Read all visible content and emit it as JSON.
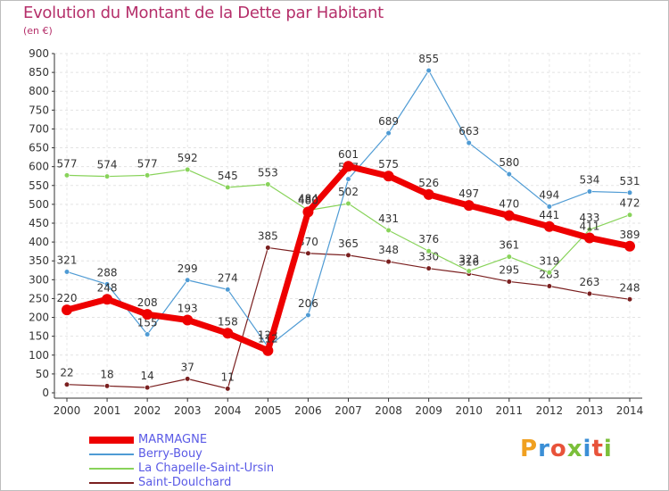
{
  "header": {
    "title": "Evolution du Montant de la Dette par Habitant",
    "subtitle": "(en €)"
  },
  "logo": {
    "text": "Proxiti",
    "letters": [
      {
        "ch": "P",
        "color": "#f0a020"
      },
      {
        "ch": "r",
        "color": "#3b8fd6"
      },
      {
        "ch": "o",
        "color": "#e8533a"
      },
      {
        "ch": "x",
        "color": "#7bbf3a"
      },
      {
        "ch": "i",
        "color": "#3b8fd6"
      },
      {
        "ch": "t",
        "color": "#e8533a"
      },
      {
        "ch": "i",
        "color": "#7bbf3a"
      }
    ]
  },
  "chart_data": {
    "type": "line",
    "x": [
      "2000",
      "2001",
      "2002",
      "2003",
      "2004",
      "2005",
      "2006",
      "2007",
      "2008",
      "2009",
      "2010",
      "2011",
      "2012",
      "2013",
      "2014"
    ],
    "ylim": [
      0,
      900
    ],
    "yticks": [
      0,
      50,
      100,
      150,
      200,
      250,
      300,
      350,
      400,
      450,
      500,
      550,
      600,
      650,
      700,
      750,
      800,
      850,
      900
    ],
    "grid": true,
    "legend_position": "bottom-left",
    "series": [
      {
        "name": "Saint-Doulchard",
        "color": "#7a1f1f",
        "width": 1.2,
        "marker": 2.8,
        "values": [
          22,
          18,
          14,
          37,
          11,
          385,
          370,
          365,
          348,
          330,
          316,
          295,
          283,
          263,
          248
        ],
        "labels": [
          "22",
          "18",
          "14",
          "37",
          "11",
          "385",
          "370",
          "365",
          "348",
          "330",
          "316",
          "295",
          "283",
          "263",
          "248"
        ]
      },
      {
        "name": "La Chapelle-Saint-Ursin",
        "color": "#88d35a",
        "width": 1.2,
        "marker": 2.8,
        "values": [
          577,
          574,
          577,
          592,
          545,
          553,
          484,
          502,
          431,
          376,
          323,
          361,
          319,
          433,
          472
        ],
        "labels": [
          "577",
          "574",
          "577",
          "592",
          "545",
          "553",
          "484",
          "502",
          "431",
          "376",
          "323",
          "361",
          "319",
          "433",
          "472"
        ]
      },
      {
        "name": "Berry-Bouy",
        "color": "#4f9bd4",
        "width": 1.2,
        "marker": 2.8,
        "values": [
          321,
          288,
          155,
          299,
          274,
          122,
          206,
          567,
          689,
          855,
          663,
          580,
          494,
          534,
          531
        ],
        "labels": [
          "321",
          "288",
          "155",
          "299",
          "274",
          "122",
          "206",
          "567",
          "689",
          "855",
          "663",
          "580",
          "494",
          "534",
          "531"
        ]
      },
      {
        "name": "MARMAGNE",
        "color": "#ee0000",
        "width": 7,
        "marker": 6,
        "values": [
          220,
          248,
          208,
          193,
          158,
          112,
          480,
          601,
          575,
          526,
          497,
          470,
          441,
          411,
          389
        ],
        "labels": [
          "220",
          "248",
          "208",
          "193",
          "158",
          "112",
          "480",
          "601",
          "575",
          "526",
          "497",
          "470",
          "441",
          "411",
          "389"
        ]
      }
    ],
    "legend_order": [
      "MARMAGNE",
      "Berry-Bouy",
      "La Chapelle-Saint-Ursin",
      "Saint-Doulchard"
    ]
  }
}
